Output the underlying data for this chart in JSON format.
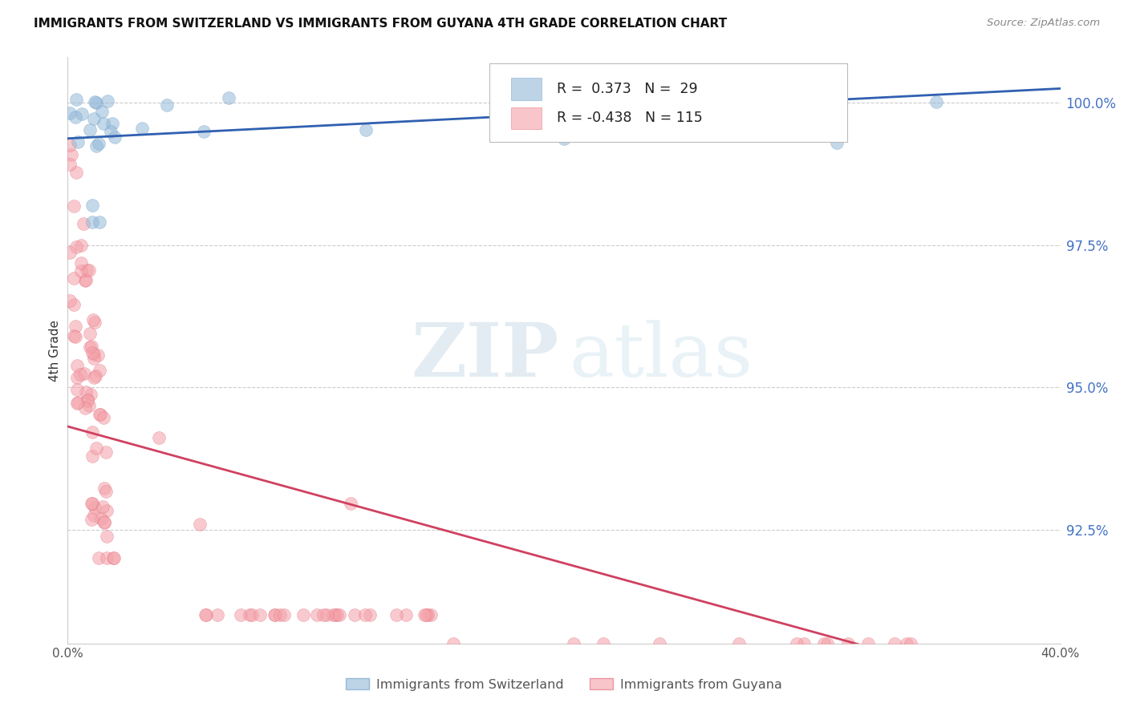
{
  "title": "IMMIGRANTS FROM SWITZERLAND VS IMMIGRANTS FROM GUYANA 4TH GRADE CORRELATION CHART",
  "source": "Source: ZipAtlas.com",
  "ylabel": "4th Grade",
  "yaxis_labels": [
    "100.0%",
    "97.5%",
    "95.0%",
    "92.5%"
  ],
  "yaxis_values": [
    1.0,
    0.975,
    0.95,
    0.925
  ],
  "xaxis_range": [
    0.0,
    0.4
  ],
  "yaxis_range": [
    0.905,
    1.008
  ],
  "legend_blue_label": "Immigrants from Switzerland",
  "legend_pink_label": "Immigrants from Guyana",
  "legend_r_blue": "R =  0.373",
  "legend_n_blue": "N =  29",
  "legend_r_pink": "R = -0.438",
  "legend_n_pink": "N = 115",
  "blue_color": "#92b8d8",
  "blue_edge": "#6a9ac4",
  "pink_color": "#f4a0a8",
  "pink_edge": "#e06878",
  "trend_blue_color": "#3060b0",
  "trend_pink_color": "#d04060",
  "trend_pink_dash_color": "#e8b0b8",
  "background_color": "#ffffff",
  "x_bottom_left": "0.0%",
  "x_bottom_right": "40.0%"
}
